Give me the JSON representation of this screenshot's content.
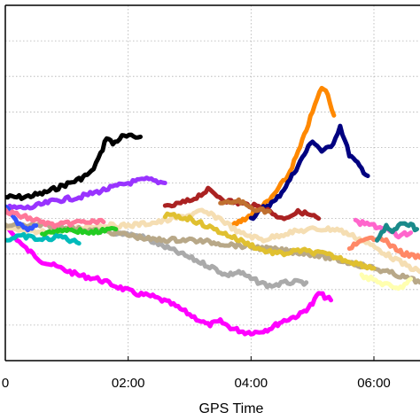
{
  "chart_data": {
    "type": "line",
    "xlabel": "GPS Time",
    "ylabel": "",
    "x_unit": "hours",
    "x_ticks": [
      {
        "value": 0,
        "label": "0"
      },
      {
        "value": 2,
        "label": "02:00"
      },
      {
        "value": 4,
        "label": "04:00"
      },
      {
        "value": 6,
        "label": "06:00"
      }
    ],
    "xlim": [
      0.0,
      6.75
    ],
    "ylim": [
      0,
      10
    ],
    "y_grid": [
      1,
      2,
      3,
      4,
      5,
      6,
      7,
      8,
      9
    ],
    "grid": true,
    "legend": "none",
    "series": [
      {
        "color": "#000000",
        "points": [
          [
            0.0,
            4.6
          ],
          [
            0.3,
            4.6
          ],
          [
            0.6,
            4.7
          ],
          [
            0.9,
            4.9
          ],
          [
            1.2,
            5.1
          ],
          [
            1.4,
            5.3
          ],
          [
            1.55,
            5.8
          ],
          [
            1.65,
            6.3
          ],
          [
            1.75,
            6.1
          ],
          [
            1.9,
            6.3
          ],
          [
            2.2,
            6.3
          ]
        ]
      },
      {
        "color": "#ff00ff",
        "points": [
          [
            0.0,
            3.8
          ],
          [
            0.3,
            3.2
          ],
          [
            0.6,
            2.8
          ],
          [
            0.9,
            2.6
          ],
          [
            1.2,
            2.4
          ],
          [
            1.5,
            2.3
          ],
          [
            1.8,
            2.1
          ],
          [
            2.1,
            1.9
          ],
          [
            2.4,
            1.8
          ],
          [
            2.7,
            1.6
          ],
          [
            3.0,
            1.3
          ],
          [
            3.3,
            1.0
          ],
          [
            3.5,
            1.1
          ],
          [
            3.7,
            0.9
          ],
          [
            3.9,
            0.8
          ],
          [
            4.1,
            0.8
          ],
          [
            4.3,
            0.9
          ],
          [
            4.5,
            1.1
          ],
          [
            4.8,
            1.3
          ],
          [
            5.0,
            1.6
          ],
          [
            5.1,
            1.9
          ],
          [
            5.3,
            1.7
          ]
        ]
      },
      {
        "color": "#ff8800",
        "points": [
          [
            3.7,
            3.8
          ],
          [
            3.9,
            4.0
          ],
          [
            4.0,
            4.1
          ],
          [
            4.3,
            4.5
          ],
          [
            4.6,
            5.2
          ],
          [
            4.8,
            6.0
          ],
          [
            5.0,
            7.0
          ],
          [
            5.15,
            7.7
          ],
          [
            5.25,
            7.5
          ],
          [
            5.35,
            6.9
          ]
        ]
      },
      {
        "color": "#000080",
        "points": [
          [
            4.0,
            4.0
          ],
          [
            4.2,
            4.3
          ],
          [
            4.4,
            4.5
          ],
          [
            4.6,
            5.0
          ],
          [
            4.8,
            5.6
          ],
          [
            5.0,
            6.2
          ],
          [
            5.15,
            5.9
          ],
          [
            5.3,
            6.0
          ],
          [
            5.45,
            6.6
          ],
          [
            5.6,
            5.8
          ],
          [
            5.7,
            5.6
          ],
          [
            5.8,
            5.4
          ],
          [
            5.9,
            5.2
          ]
        ]
      },
      {
        "color": "#9933ff",
        "points": [
          [
            0.0,
            4.3
          ],
          [
            0.4,
            4.3
          ],
          [
            0.8,
            4.5
          ],
          [
            1.2,
            4.6
          ],
          [
            1.6,
            4.8
          ],
          [
            2.0,
            5.0
          ],
          [
            2.3,
            5.1
          ],
          [
            2.6,
            5.0
          ]
        ]
      },
      {
        "color": "#aaaaaa",
        "points": [
          [
            1.8,
            3.6
          ],
          [
            2.2,
            3.5
          ],
          [
            2.6,
            3.2
          ],
          [
            3.0,
            2.9
          ],
          [
            3.4,
            2.6
          ],
          [
            3.6,
            2.4
          ],
          [
            3.8,
            2.5
          ],
          [
            4.0,
            2.3
          ],
          [
            4.3,
            2.1
          ],
          [
            4.6,
            2.2
          ],
          [
            4.9,
            2.2
          ]
        ]
      },
      {
        "color": "#aa2222",
        "points": [
          [
            2.6,
            4.3
          ],
          [
            3.0,
            4.5
          ],
          [
            3.3,
            4.8
          ],
          [
            3.6,
            4.5
          ],
          [
            3.9,
            4.4
          ],
          [
            4.2,
            4.3
          ],
          [
            4.5,
            4.0
          ],
          [
            4.8,
            4.2
          ],
          [
            5.1,
            4.0
          ]
        ]
      },
      {
        "color": "#f5deb3",
        "points": [
          [
            0.0,
            3.7
          ],
          [
            0.5,
            3.6
          ],
          [
            1.0,
            3.7
          ],
          [
            1.5,
            3.8
          ],
          [
            2.0,
            3.8
          ],
          [
            2.5,
            3.9
          ],
          [
            3.0,
            4.1
          ],
          [
            3.2,
            4.2
          ],
          [
            3.5,
            4.0
          ],
          [
            3.8,
            3.6
          ],
          [
            4.2,
            3.4
          ],
          [
            4.6,
            3.6
          ],
          [
            5.0,
            3.7
          ],
          [
            5.4,
            3.7
          ],
          [
            5.8,
            3.4
          ],
          [
            6.2,
            3.0
          ],
          [
            6.5,
            2.7
          ],
          [
            6.75,
            2.5
          ]
        ]
      },
      {
        "color": "#b8a888",
        "points": [
          [
            0.0,
            3.8
          ],
          [
            0.6,
            3.8
          ],
          [
            1.2,
            3.7
          ],
          [
            1.8,
            3.6
          ],
          [
            2.4,
            3.4
          ],
          [
            3.0,
            3.4
          ],
          [
            3.5,
            3.3
          ],
          [
            4.0,
            3.2
          ],
          [
            4.5,
            3.1
          ],
          [
            5.0,
            3.0
          ],
          [
            5.5,
            2.8
          ],
          [
            6.0,
            2.6
          ],
          [
            6.4,
            2.4
          ],
          [
            6.75,
            2.2
          ]
        ]
      },
      {
        "color": "#e0c030",
        "points": [
          [
            2.6,
            4.1
          ],
          [
            3.0,
            4.0
          ],
          [
            3.4,
            3.7
          ],
          [
            3.8,
            3.4
          ],
          [
            4.2,
            3.1
          ],
          [
            4.5,
            3.0
          ],
          [
            4.8,
            3.1
          ],
          [
            5.2,
            3.0
          ],
          [
            5.6,
            2.8
          ],
          [
            6.0,
            2.6
          ]
        ]
      },
      {
        "color": "#00bbbb",
        "points": [
          [
            0.0,
            3.4
          ],
          [
            0.3,
            3.5
          ],
          [
            0.6,
            3.4
          ],
          [
            0.9,
            3.5
          ],
          [
            1.2,
            3.3
          ]
        ]
      },
      {
        "color": "#22cc22",
        "points": [
          [
            0.6,
            3.6
          ],
          [
            1.0,
            3.7
          ],
          [
            1.4,
            3.6
          ],
          [
            1.8,
            3.7
          ]
        ]
      },
      {
        "color": "#3355ff",
        "points": [
          [
            0.0,
            4.4
          ],
          [
            0.2,
            3.9
          ],
          [
            0.4,
            3.7
          ],
          [
            0.5,
            3.8
          ]
        ]
      },
      {
        "color": "#ff7799",
        "points": [
          [
            0.0,
            4.2
          ],
          [
            0.4,
            4.0
          ],
          [
            0.8,
            3.8
          ],
          [
            1.2,
            3.9
          ],
          [
            1.6,
            3.9
          ]
        ]
      },
      {
        "color": "#ff8866",
        "points": [
          [
            5.6,
            3.2
          ],
          [
            5.9,
            3.4
          ],
          [
            6.1,
            3.5
          ],
          [
            6.3,
            3.2
          ],
          [
            6.5,
            3.0
          ],
          [
            6.75,
            2.9
          ]
        ]
      },
      {
        "color": "#ff66cc",
        "points": [
          [
            5.7,
            3.9
          ],
          [
            6.0,
            3.8
          ],
          [
            6.2,
            3.7
          ],
          [
            6.4,
            3.5
          ],
          [
            6.6,
            3.6
          ]
        ]
      },
      {
        "color": "#1a8a8a",
        "points": [
          [
            6.05,
            3.4
          ],
          [
            6.2,
            3.8
          ],
          [
            6.3,
            3.6
          ],
          [
            6.5,
            3.9
          ],
          [
            6.7,
            3.7
          ]
        ]
      },
      {
        "color": "#ffffb0",
        "points": [
          [
            5.8,
            2.4
          ],
          [
            6.1,
            2.2
          ],
          [
            6.4,
            2.0
          ],
          [
            6.6,
            2.3
          ]
        ]
      },
      {
        "color": "#c07030",
        "points": [
          [
            3.5,
            4.4
          ],
          [
            3.8,
            4.5
          ],
          [
            4.0,
            4.3
          ],
          [
            4.3,
            4.2
          ]
        ]
      }
    ]
  }
}
